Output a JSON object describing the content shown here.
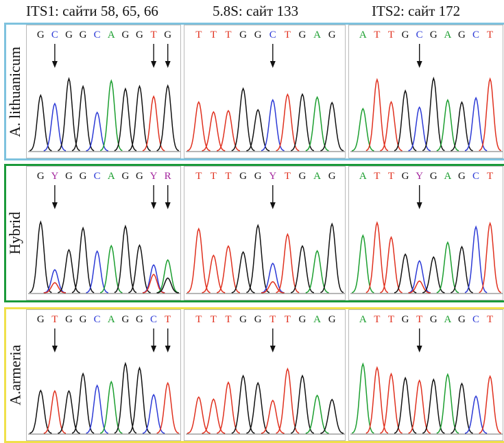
{
  "headers": [
    "ITS1: сайти 58, 65, 66",
    "5.8S: сайт 133",
    "ITS2: сайт 172"
  ],
  "colors": {
    "A": "#1a9e2e",
    "C": "#2b39d6",
    "G": "#111111",
    "T": "#e0301e",
    "Y": "#a3249d",
    "R": "#a3249d",
    "baseline": "#6c6c6c"
  },
  "rows": [
    {
      "label": "A. lithuanicum",
      "border_color": "#7ec2de",
      "panels": [
        {
          "bases": "GCGGCAGGTG",
          "arrows": [
            1,
            8,
            9
          ]
        },
        {
          "bases": "TTTGGCTGAG",
          "arrows": [
            5
          ]
        },
        {
          "bases": "ATTGCGAGCT",
          "arrows": [
            4
          ]
        }
      ]
    },
    {
      "label": "Hybrid",
      "border_color": "#1a9a3a",
      "panels": [
        {
          "bases": "GYGGCAGGYR",
          "arrows": [
            1,
            8,
            9
          ]
        },
        {
          "bases": "TTTGGYTGAG",
          "arrows": [
            5
          ]
        },
        {
          "bases": "ATTGYGAGCT",
          "arrows": [
            4
          ]
        }
      ]
    },
    {
      "label": "A.armeria",
      "border_color": "#f0e04a",
      "panels": [
        {
          "bases": "GTGGCAGGCT",
          "arrows": [
            1,
            8,
            9
          ]
        },
        {
          "bases": "TTTGGTTGAG",
          "arrows": [
            5
          ]
        },
        {
          "bases": "ATTGTGAGCT",
          "arrows": [
            4
          ]
        }
      ]
    }
  ]
}
